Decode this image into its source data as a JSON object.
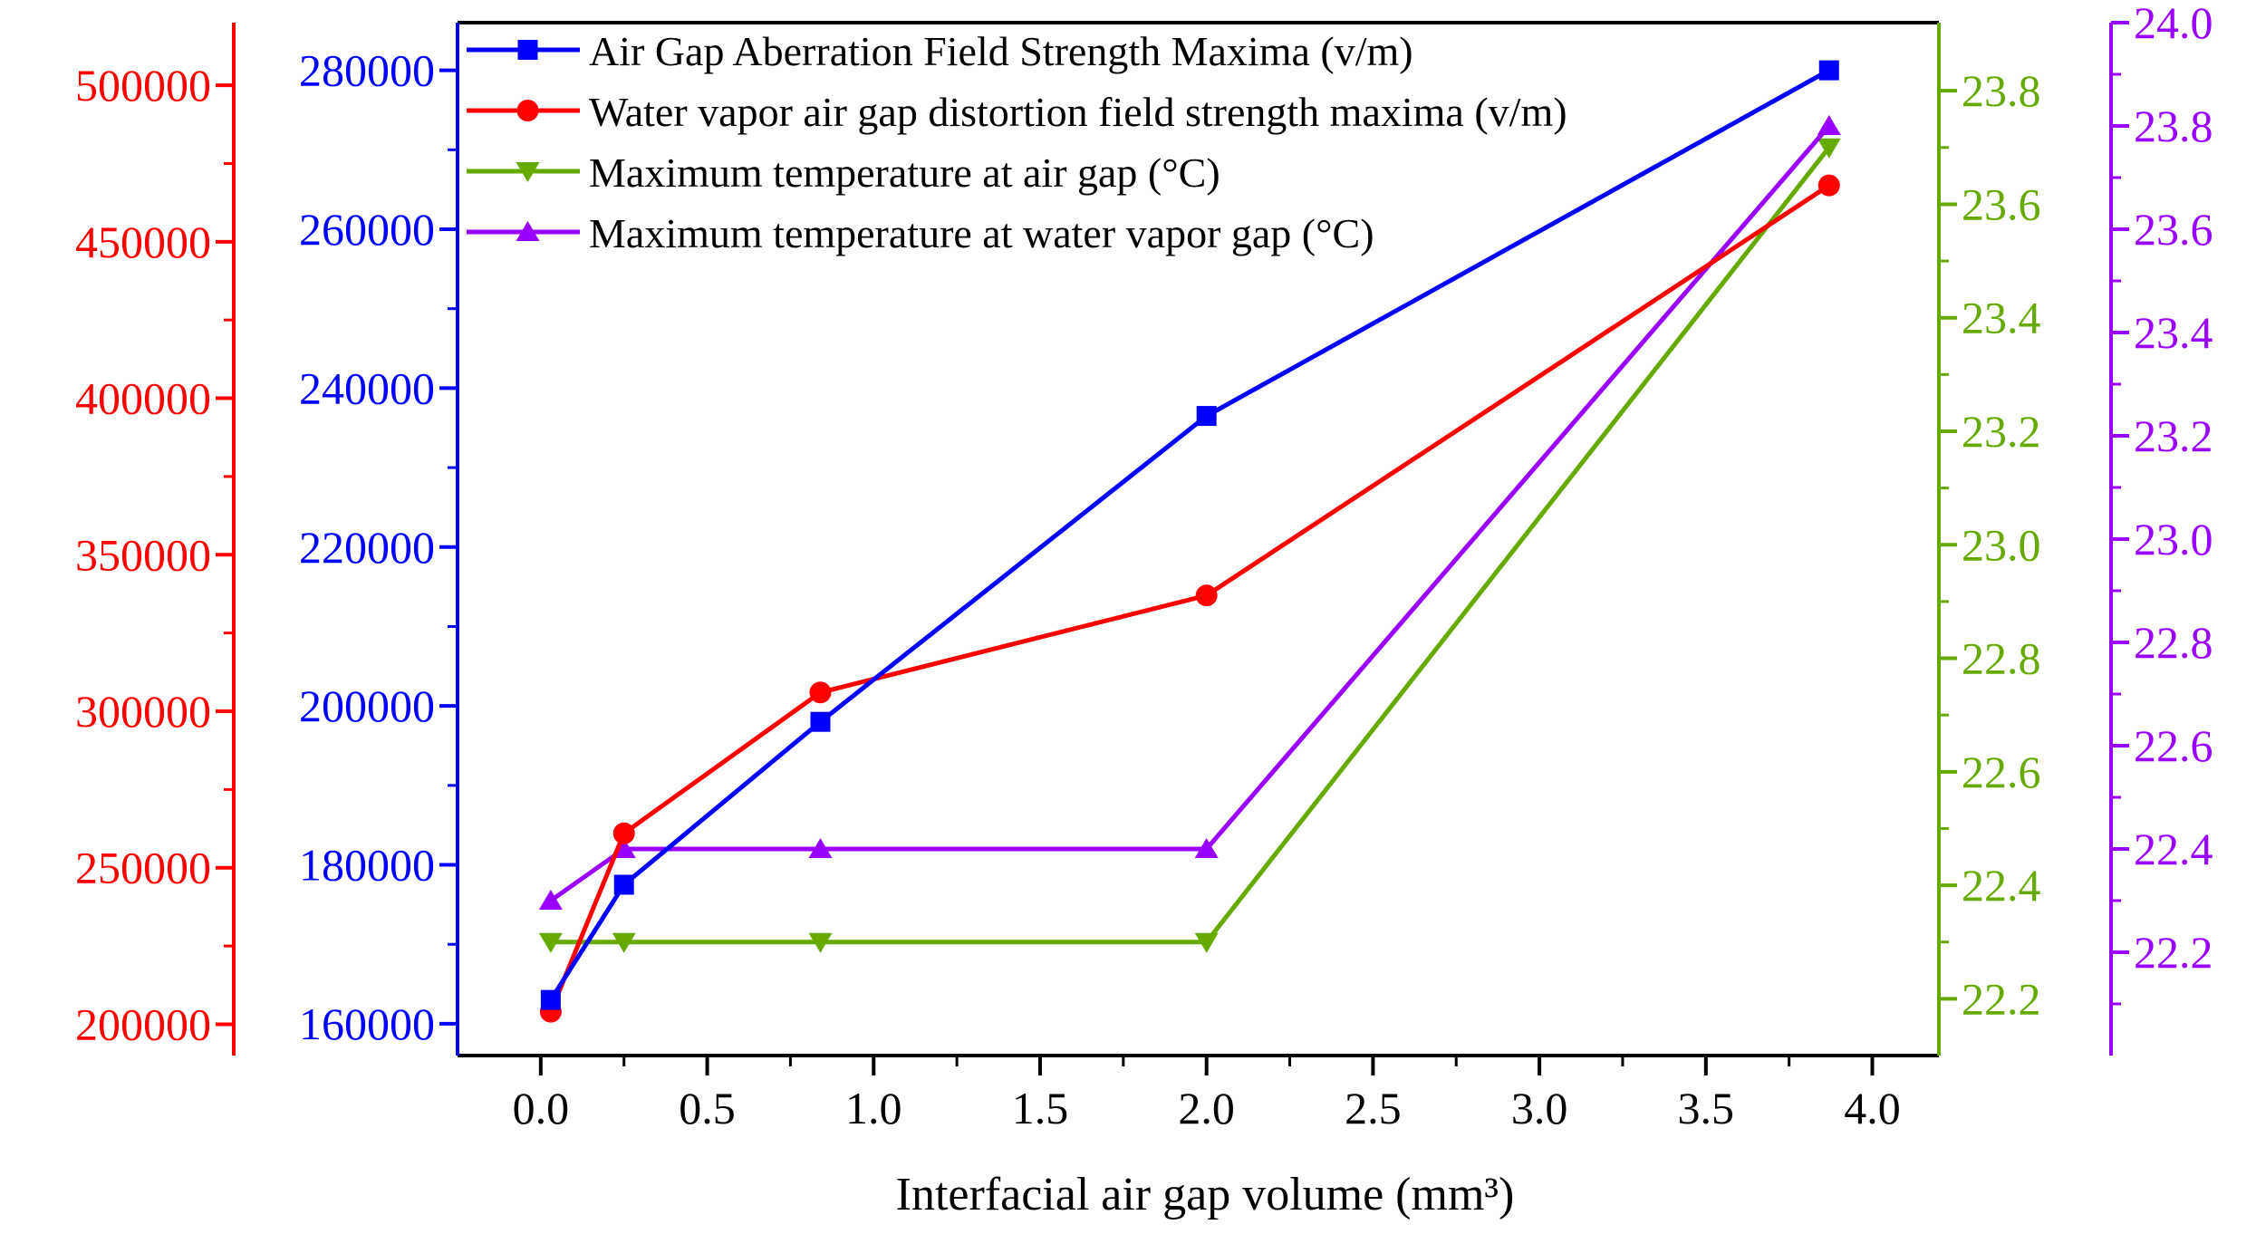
{
  "chart_data": {
    "type": "line",
    "xlabel": "Interfacial air gap volume (mm³)",
    "xlim": [
      -0.25,
      4.2
    ],
    "x_ticks": [
      "0.0",
      "0.5",
      "1.0",
      "1.5",
      "2.0",
      "2.5",
      "3.0",
      "3.5",
      "4.0"
    ],
    "x_minor_ticks": [
      0.25,
      0.75,
      1.25,
      1.75,
      2.25,
      2.75,
      3.25,
      3.75
    ],
    "axes": [
      {
        "id": "red",
        "side": "left",
        "color": "#ff0000",
        "ylim": [
          190000,
          520000
        ],
        "ticks": [
          "200000",
          "250000",
          "300000",
          "350000",
          "400000",
          "450000",
          "500000"
        ]
      },
      {
        "id": "blue",
        "side": "left",
        "color": "#0000ff",
        "ylim": [
          156000,
          286000
        ],
        "ticks": [
          "160000",
          "180000",
          "200000",
          "220000",
          "240000",
          "260000",
          "280000"
        ]
      },
      {
        "id": "green",
        "side": "right",
        "color": "#66aa00",
        "ylim": [
          22.1,
          23.92
        ],
        "ticks": [
          "22.2",
          "22.4",
          "22.6",
          "22.8",
          "23.0",
          "23.2",
          "23.4",
          "23.6",
          "23.8"
        ]
      },
      {
        "id": "purple",
        "side": "right",
        "color": "#9900ff",
        "ylim": [
          22.0,
          24.0
        ],
        "ticks": [
          "22.2",
          "22.4",
          "22.6",
          "22.8",
          "23.0",
          "23.2",
          "23.4",
          "23.6",
          "23.8",
          "24.0"
        ]
      }
    ],
    "series": [
      {
        "name": "Air Gap Aberration Field Strength Maxima (v/m)",
        "axis": "blue",
        "color": "#0000ff",
        "marker": "square",
        "x": [
          0.03,
          0.25,
          0.84,
          2.0,
          3.87
        ],
        "values": [
          163000,
          177500,
          198000,
          236500,
          280000
        ]
      },
      {
        "name": "Water vapor air gap distortion field strength maxima (v/m)",
        "axis": "red",
        "color": "#ff0000",
        "marker": "circle",
        "x": [
          0.03,
          0.25,
          0.84,
          2.0,
          3.87
        ],
        "values": [
          204000,
          261000,
          306000,
          337000,
          468000
        ]
      },
      {
        "name": "Maximum temperature at air gap (°C)",
        "axis": "green",
        "color": "#66aa00",
        "marker": "triangle-down",
        "x": [
          0.03,
          0.25,
          0.84,
          2.0,
          3.87
        ],
        "values": [
          22.3,
          22.3,
          22.3,
          22.3,
          23.7
        ]
      },
      {
        "name": "Maximum temperature at water vapor gap (°C)",
        "axis": "purple",
        "color": "#9900ff",
        "marker": "triangle-up",
        "x": [
          0.03,
          0.25,
          0.84,
          2.0,
          3.87
        ],
        "values": [
          22.3,
          22.4,
          22.4,
          22.4,
          23.8
        ]
      }
    ],
    "legend_position": "top-left inside"
  }
}
